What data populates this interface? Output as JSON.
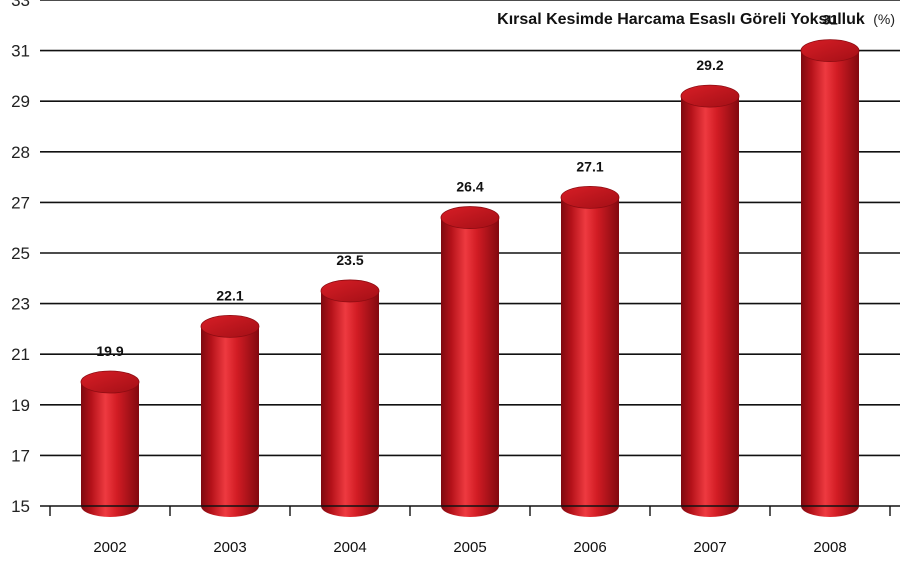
{
  "chart_data": {
    "type": "bar",
    "title": "Kırsal Kesimde Harcama Esaslı Göreli Yoksulluk",
    "title_unit": "(%)",
    "xlabel": "",
    "ylabel": "",
    "categories": [
      "2002",
      "2003",
      "2004",
      "2005",
      "2006",
      "2007",
      "2008"
    ],
    "values": [
      19.9,
      22.1,
      23.5,
      26.4,
      27.1,
      29.2,
      31
    ],
    "value_labels": [
      "19.9",
      "22.1",
      "23.5",
      "26.4",
      "27.1",
      "29.2",
      "31"
    ],
    "y_tick_labels": [
      "15",
      "17",
      "19",
      "21",
      "23",
      "25",
      "27",
      "28",
      "29",
      "31",
      "33"
    ],
    "bar_style": "3d-cylinder",
    "bar_color": "#c4141c",
    "grid": true
  }
}
